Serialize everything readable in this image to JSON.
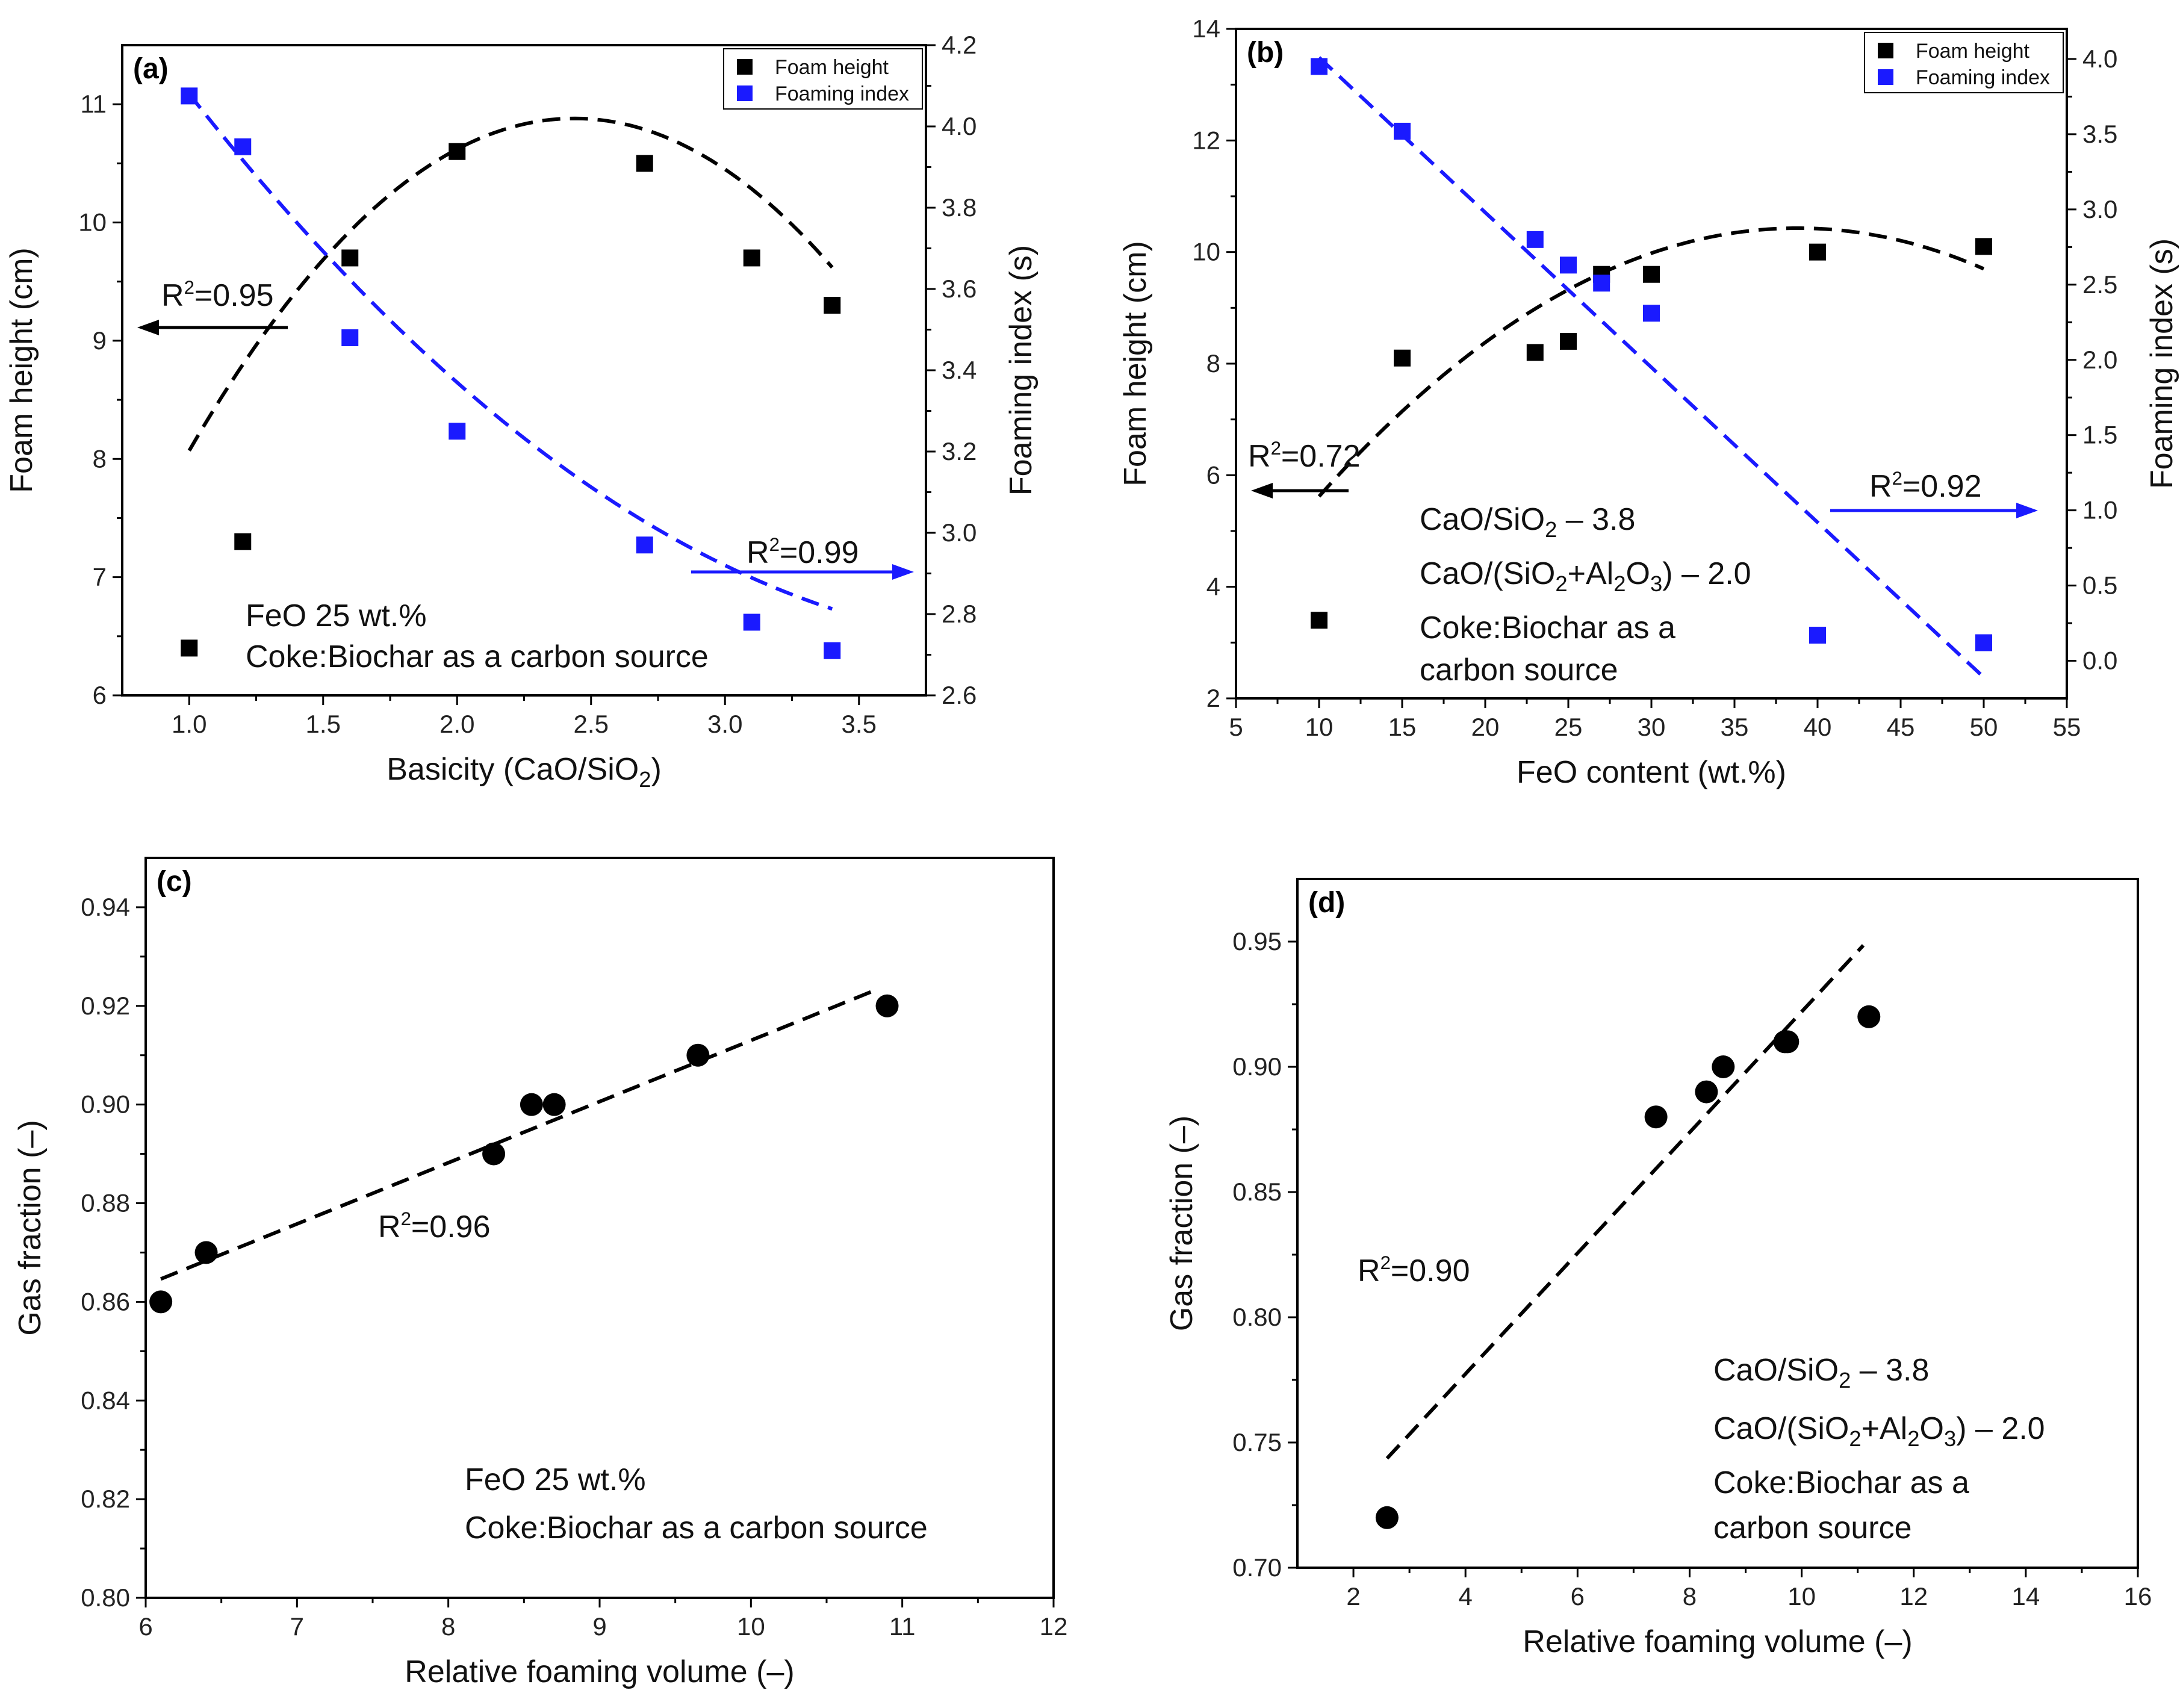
{
  "figure": {
    "colors": {
      "black": "#000000",
      "blue": "#1a1aff"
    }
  },
  "chart_data": [
    {
      "panel": "a",
      "type": "scatter",
      "panel_label": "(a)",
      "xlabel": "Basicity (CaO/SiO",
      "xlabel_sub": "2",
      "xlabel_end": ")",
      "ylabel_left": "Foam height (cm)",
      "ylabel_right": "Foaming index (s)",
      "xlim": [
        0.75,
        3.75
      ],
      "ylim_left": [
        6,
        11.5
      ],
      "ylim_right": [
        2.6,
        4.2
      ],
      "xticks": [
        "1.0",
        "1.5",
        "2.0",
        "2.5",
        "3.0",
        "3.5"
      ],
      "yticks_left": [
        "6",
        "7",
        "8",
        "9",
        "10",
        "11"
      ],
      "yticks_right": [
        "2.6",
        "2.8",
        "3.0",
        "3.2",
        "3.4",
        "3.6",
        "3.8",
        "4.0",
        "4.2"
      ],
      "legend": {
        "position": "top-right",
        "entries": [
          "Foam height",
          "Foaming index"
        ]
      },
      "series": [
        {
          "name": "Foam height",
          "axis": "left",
          "color": "#000000",
          "x": [
            1.0,
            1.2,
            1.6,
            2.0,
            2.7,
            3.1,
            3.4
          ],
          "y": [
            6.4,
            7.3,
            9.7,
            10.6,
            10.5,
            9.7,
            9.3
          ],
          "fit": {
            "type": "quadratic",
            "coeffs": [
              -1.36,
              6.63,
              2.8
            ],
            "x_range": [
              1.0,
              3.4
            ]
          }
        },
        {
          "name": "Foaming index",
          "axis": "right",
          "color": "#1a1aff",
          "x": [
            1.0,
            1.2,
            1.6,
            2.0,
            2.7,
            3.1,
            3.4
          ],
          "y": [
            4.075,
            3.95,
            3.48,
            3.25,
            2.97,
            2.78,
            2.71
          ],
          "fit": {
            "type": "quadratic",
            "coeffs": [
              0.13,
              -1.1,
              5.05
            ],
            "x_range": [
              1.0,
              3.4
            ]
          }
        }
      ],
      "annotations": {
        "r2_left": "=0.95",
        "r2_right": "=0.99",
        "r2_prefix": "R",
        "r2_sup": "2",
        "text_lines": [
          "FeO 25 wt.%",
          "Coke:Biochar as a carbon source"
        ]
      }
    },
    {
      "panel": "b",
      "type": "scatter",
      "panel_label": "(b)",
      "xlabel": "FeO content (wt.%)",
      "ylabel_left": "Foam height (cm)",
      "ylabel_right": "Foaming index (s)",
      "xlim": [
        5,
        55
      ],
      "ylim_left": [
        2,
        14
      ],
      "ylim_right": [
        -0.25,
        4.2
      ],
      "xticks": [
        "5",
        "10",
        "15",
        "20",
        "25",
        "30",
        "35",
        "40",
        "45",
        "50",
        "55"
      ],
      "yticks_left": [
        "2",
        "4",
        "6",
        "8",
        "10",
        "12",
        "14"
      ],
      "yticks_right": [
        "0.0",
        "0.5",
        "1.0",
        "1.5",
        "2.0",
        "2.5",
        "3.0",
        "3.5",
        "4.0"
      ],
      "legend": {
        "position": "top-right",
        "entries": [
          "Foam height",
          "Foaming index"
        ]
      },
      "series": [
        {
          "name": "Foam height",
          "axis": "left",
          "color": "#000000",
          "x": [
            10,
            15,
            23,
            25,
            27,
            30,
            40,
            50
          ],
          "y": [
            3.4,
            8.1,
            8.2,
            8.4,
            9.6,
            9.6,
            10.0,
            10.1
          ],
          "fit": {
            "type": "quadratic",
            "coeffs": [
              -0.0058,
              0.45,
              1.7
            ],
            "x_range": [
              10,
              50
            ]
          }
        },
        {
          "name": "Foaming index",
          "axis": "right",
          "color": "#1a1aff",
          "x": [
            10,
            15,
            23,
            25,
            27,
            30,
            40,
            50
          ],
          "y": [
            3.95,
            3.52,
            2.8,
            2.63,
            2.51,
            2.31,
            0.17,
            0.12
          ],
          "fit": {
            "type": "linear",
            "coeffs": [
              -0.103,
              5.04
            ],
            "x_range": [
              10,
              50
            ]
          }
        }
      ],
      "annotations": {
        "r2_left": "=0.72",
        "r2_right": "=0.92",
        "r2_prefix": "R",
        "r2_sup": "2",
        "text_lines": [
          "CaO/SiO|2| – 3.8",
          "CaO/(SiO|2|+Al|2|O|3|) – 2.0",
          "Coke:Biochar as a",
          "carbon source"
        ]
      }
    },
    {
      "panel": "c",
      "type": "scatter",
      "panel_label": "(c)",
      "xlabel": "Relative foaming volume (–)",
      "ylabel": "Gas fraction (–)",
      "xlim": [
        6,
        12
      ],
      "ylim": [
        0.8,
        0.95
      ],
      "xticks": [
        "6",
        "7",
        "8",
        "9",
        "10",
        "11",
        "12"
      ],
      "yticks": [
        "0.80",
        "0.82",
        "0.84",
        "0.86",
        "0.88",
        "0.90",
        "0.92",
        "0.94"
      ],
      "series": [
        {
          "name": "Gas fraction",
          "color": "#000000",
          "x": [
            6.1,
            6.4,
            8.3,
            8.55,
            8.7,
            9.65,
            10.9
          ],
          "y": [
            0.86,
            0.87,
            0.89,
            0.9,
            0.9,
            0.91,
            0.92
          ],
          "fit": {
            "type": "linear",
            "coeffs": [
              0.0124,
              0.789
            ],
            "x_range": [
              6.1,
              10.85
            ]
          }
        }
      ],
      "annotations": {
        "r2": "=0.96",
        "r2_prefix": "R",
        "r2_sup": "2",
        "text_lines": [
          "FeO 25 wt.%",
          "Coke:Biochar as a carbon source"
        ]
      }
    },
    {
      "panel": "d",
      "type": "scatter",
      "panel_label": "(d)",
      "xlabel": "Relative foaming volume (–)",
      "ylabel": "Gas fraction (–)",
      "xlim": [
        1,
        16
      ],
      "ylim": [
        0.7,
        0.975
      ],
      "xticks": [
        "2",
        "4",
        "6",
        "8",
        "10",
        "12",
        "14",
        "16"
      ],
      "yticks": [
        "0.70",
        "0.75",
        "0.80",
        "0.85",
        "0.90",
        "0.95"
      ],
      "series": [
        {
          "name": "Gas fraction",
          "color": "#000000",
          "x": [
            2.6,
            7.4,
            8.3,
            8.6,
            9.7,
            9.75,
            11.2
          ],
          "y": [
            0.72,
            0.88,
            0.89,
            0.9,
            0.91,
            0.91,
            0.92
          ],
          "fit": {
            "type": "linear",
            "coeffs": [
              0.0241,
              0.681
            ],
            "x_range": [
              2.6,
              11.1
            ]
          }
        }
      ],
      "annotations": {
        "r2": "=0.90",
        "r2_prefix": "R",
        "r2_sup": "2",
        "text_lines": [
          "CaO/SiO|2| – 3.8",
          "CaO/(SiO|2|+Al|2|O|3|) – 2.0",
          "Coke:Biochar as a",
          "carbon source"
        ]
      }
    }
  ]
}
